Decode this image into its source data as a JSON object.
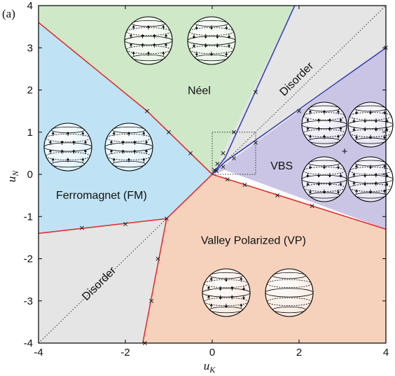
{
  "chart_data": {
    "type": "phase-diagram",
    "panel_label": "(a)",
    "xlabel": "u",
    "xlabel_sub": "K",
    "ylabel": "u",
    "ylabel_sub": "N",
    "xlim": [
      -4,
      4
    ],
    "ylim": [
      -4,
      4
    ],
    "xticks": [
      -4,
      -2,
      0,
      2,
      4
    ],
    "yticks": [
      -4,
      -3,
      -2,
      -1,
      0,
      1,
      2,
      3,
      4
    ],
    "regions": [
      {
        "name": "Néel",
        "color": "#cfe8c8",
        "polygon": [
          [
            -4,
            4
          ],
          [
            1.9,
            4
          ],
          [
            0,
            0
          ],
          [
            -1.5,
            1.5
          ],
          [
            -4,
            3.6
          ]
        ],
        "label_pos": [
          -0.3,
          1.9
        ]
      },
      {
        "name": "Ferromagnet (FM)",
        "color": "#bfe3f5",
        "polygon": [
          [
            -4,
            3.6
          ],
          [
            -1.5,
            1.5
          ],
          [
            0,
            0
          ],
          [
            -1.05,
            -1.05
          ],
          [
            -4,
            -1.4
          ]
        ],
        "label_pos": [
          -2.55,
          -0.58
        ]
      },
      {
        "name": "VBS",
        "color": "#cbc5e5",
        "polygon": [
          [
            0,
            0
          ],
          [
            4,
            3
          ],
          [
            4,
            -1.3
          ],
          [
            0.3,
            0.1
          ]
        ],
        "label_pos": [
          1.6,
          0.12
        ]
      },
      {
        "name": "Valley Polarized (VP)",
        "color": "#f6d2bd",
        "polygon": [
          [
            0,
            0
          ],
          [
            4,
            -1.3
          ],
          [
            4,
            -4
          ],
          [
            -1.6,
            -4
          ],
          [
            -1.05,
            -1.05
          ]
        ],
        "label_pos": [
          0.95,
          -1.65
        ]
      },
      {
        "name": "Disorder",
        "color": "#e5e5e5",
        "polygon": [
          [
            1.9,
            4
          ],
          [
            4,
            4
          ],
          [
            4,
            3
          ],
          [
            0,
            0
          ]
        ],
        "label_pos": [
          2.0,
          2.2
        ],
        "label_angle": -45
      },
      {
        "name": "Disorder",
        "color": "#e5e5e5",
        "polygon": [
          [
            -4,
            -1.4
          ],
          [
            -1.05,
            -1.05
          ],
          [
            -1.6,
            -4
          ],
          [
            -4,
            -4
          ]
        ],
        "label_pos": [
          -2.55,
          -2.65
        ],
        "label_angle": -45
      }
    ],
    "boundaries": [
      {
        "color": "#e03030",
        "points": [
          [
            -4,
            3.6
          ],
          [
            -1.5,
            1.5
          ],
          [
            0,
            0
          ]
        ]
      },
      {
        "color": "#e03030",
        "points": [
          [
            -4,
            -1.4
          ],
          [
            -1.05,
            -1.05
          ],
          [
            0,
            0
          ]
        ]
      },
      {
        "color": "#e03030",
        "points": [
          [
            -1.05,
            -1.05
          ],
          [
            -1.6,
            -4
          ]
        ]
      },
      {
        "color": "#e03030",
        "points": [
          [
            0,
            0
          ],
          [
            4,
            -1.3
          ]
        ]
      },
      {
        "color": "#3a45b0",
        "points": [
          [
            0,
            0
          ],
          [
            0.3,
            0.4
          ],
          [
            1.9,
            4
          ]
        ]
      },
      {
        "color": "#3a45b0",
        "points": [
          [
            0,
            0
          ],
          [
            0.3,
            0.3
          ],
          [
            4,
            3
          ]
        ]
      }
    ],
    "markers": [
      [
        -1.5,
        1.5
      ],
      [
        -1.0,
        1.0
      ],
      [
        -0.5,
        0.5
      ],
      [
        1.0,
        1.95
      ],
      [
        0.5,
        1.0
      ],
      [
        0.25,
        0.5
      ],
      [
        0.12,
        0.25
      ],
      [
        0.05,
        0.1
      ],
      [
        4.0,
        3.0
      ],
      [
        2.0,
        1.5
      ],
      [
        1.0,
        0.75
      ],
      [
        0.5,
        0.38
      ],
      [
        0.25,
        0.18
      ],
      [
        0.1,
        0.08
      ],
      [
        0.35,
        -0.12
      ],
      [
        0.75,
        -0.25
      ],
      [
        1.5,
        -0.5
      ],
      [
        2.3,
        -0.75
      ],
      [
        -3.0,
        -1.27
      ],
      [
        -2.0,
        -1.18
      ],
      [
        -1.05,
        -1.05
      ],
      [
        -1.25,
        -2.0
      ],
      [
        -1.4,
        -3.0
      ],
      [
        -1.55,
        -4.0
      ]
    ],
    "inset_box": {
      "x": [
        0,
        1
      ],
      "y": [
        0,
        1
      ]
    },
    "diagonal": {
      "from": [
        -4,
        -4
      ],
      "to": [
        4,
        4
      ],
      "style": "dotted"
    },
    "plus_sign": "+"
  }
}
